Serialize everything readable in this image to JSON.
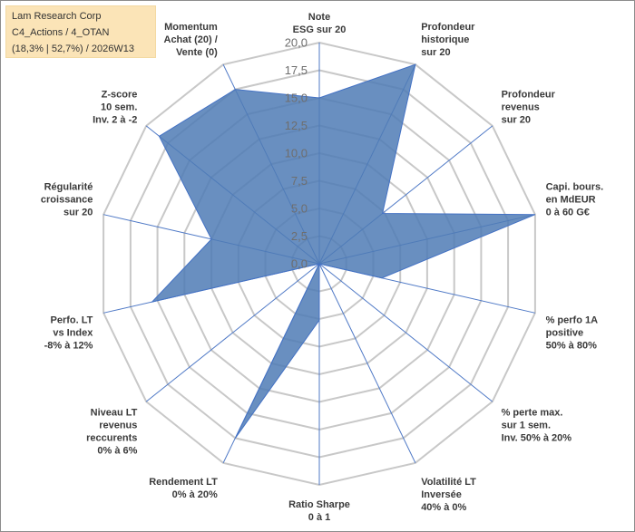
{
  "chart_data": {
    "type": "radar",
    "title_lines": [
      "Lam Research Corp",
      "C4_Actions / 4_OTAN",
      "(18,3% | 52,7%) / 2026W13"
    ],
    "rmax": 20,
    "ticks": [
      "0,0",
      "2,5",
      "5,0",
      "7,5",
      "10,0",
      "12,5",
      "15,0",
      "17,5",
      "20,0"
    ],
    "categories": [
      [
        "Note",
        "ESG sur 20"
      ],
      [
        "Profondeur",
        "historique",
        "sur 20"
      ],
      [
        "Profondeur",
        "revenus",
        "sur 20"
      ],
      [
        "Capi. bours.",
        "en MdEUR",
        "0 à 60 G€"
      ],
      [
        "% perfo 1A",
        "positive",
        "50% à 80%"
      ],
      [
        "% perte max.",
        "sur 1 sem.",
        "Inv. 50% à 20%"
      ],
      [
        "Volatilité LT",
        "Inversée",
        "40% à 0%"
      ],
      [
        "Ratio Sharpe",
        "0 à 1"
      ],
      [
        "Rendement LT",
        "0% à 20%"
      ],
      [
        "Niveau LT",
        "revenus",
        "reccurents",
        "0% à 6%"
      ],
      [
        "Perfo. LT",
        "vs Index",
        "-8% à 12%"
      ],
      [
        "Régularité",
        "croissance",
        "sur 20"
      ],
      [
        "Z-score",
        "10 sem.",
        "Inv. 2 à -2"
      ],
      [
        "Momentum",
        "Achat (20) /",
        "Vente (0)"
      ]
    ],
    "series": [
      {
        "name": "Lam Research Corp",
        "values": [
          15.0,
          20.0,
          7.3,
          20.0,
          5.8,
          0.0,
          0.0,
          5.1,
          17.5,
          0.0,
          15.5,
          10.0,
          18.5,
          17.5
        ]
      }
    ],
    "colors": {
      "fill": "#4f7bb5",
      "stroke": "#4472c4",
      "grid": "#c8c8c8",
      "title_bg": "#fbe4b7"
    }
  }
}
